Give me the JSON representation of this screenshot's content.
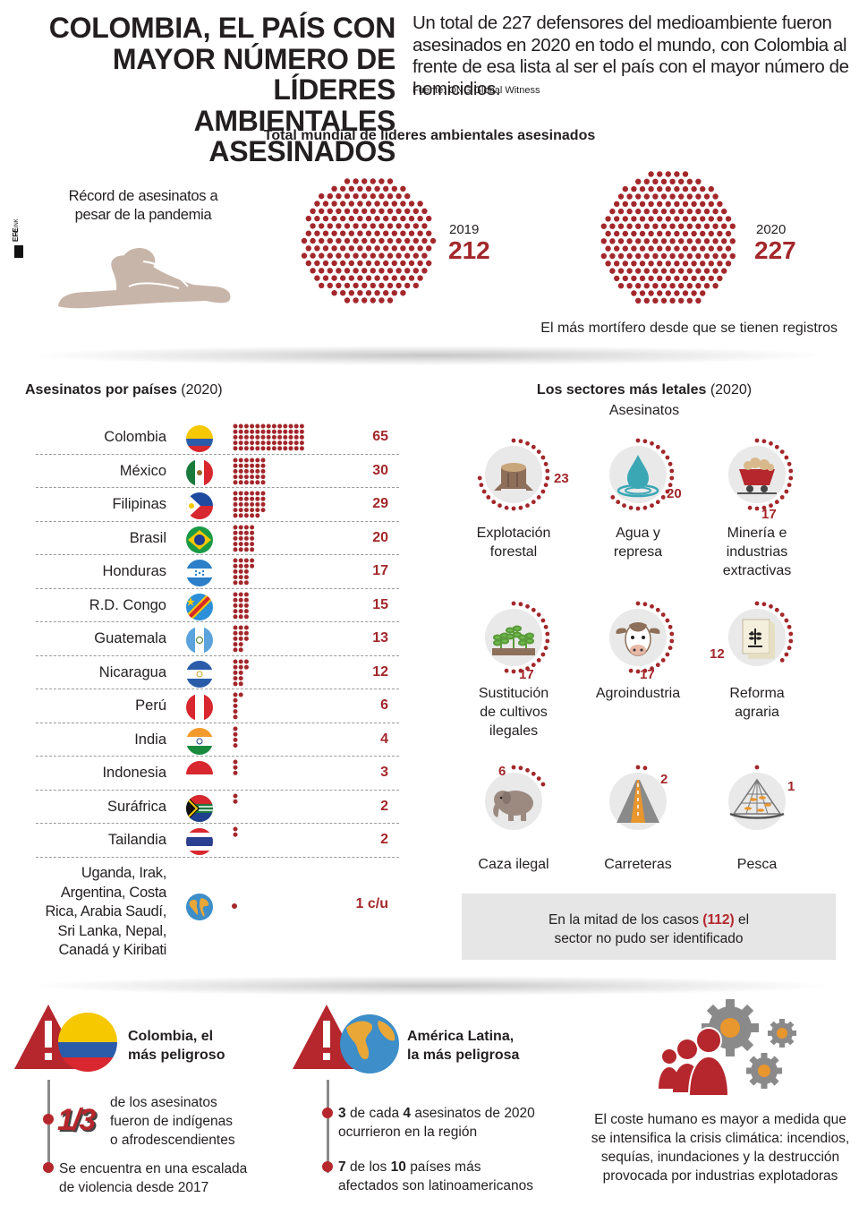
{
  "header": {
    "title_lines": [
      "COLOMBIA, EL PAÍS CON",
      "MAYOR NÚMERO DE LÍDERES",
      "AMBIENTALES ASESINADOS"
    ],
    "intro": "Un total de 227 defensores del medioambiente fueron asesinados en 2020 en todo el mundo, con Colombia al frente de esa lista al ser el país con el mayor número de homicidios.",
    "source": "Fuente: ONG Global Witness",
    "agency_logo": "EFE|NEWS"
  },
  "totals": {
    "title": "Total mundial de líderes ambientales asesinados",
    "record_text_line1": "Récord de asesinatos a",
    "record_text_line2": "pesar de la pandemia",
    "y2019_label": "2019",
    "y2019_value": "212",
    "y2020_label": "2020",
    "y2020_value": "227",
    "note": "El más mortífero desde que se tienen registros"
  },
  "countries": {
    "title_bold": "Asesinatos por países",
    "title_rest": "(2020)",
    "rows": [
      {
        "name": "Colombia",
        "value": "65",
        "count": 65,
        "flag": "colombia"
      },
      {
        "name": "México",
        "value": "30",
        "count": 30,
        "flag": "mexico"
      },
      {
        "name": "Filipinas",
        "value": "29",
        "count": 29,
        "flag": "philippines"
      },
      {
        "name": "Brasil",
        "value": "20",
        "count": 20,
        "flag": "brazil"
      },
      {
        "name": "Honduras",
        "value": "17",
        "count": 17,
        "flag": "honduras"
      },
      {
        "name": "R.D. Congo",
        "value": "15",
        "count": 15,
        "flag": "drcongo"
      },
      {
        "name": "Guatemala",
        "value": "13",
        "count": 13,
        "flag": "guatemala"
      },
      {
        "name": "Nicaragua",
        "value": "12",
        "count": 12,
        "flag": "nicaragua"
      },
      {
        "name": "Perú",
        "value": "6",
        "count": 6,
        "flag": "peru"
      },
      {
        "name": "India",
        "value": "4",
        "count": 4,
        "flag": "india"
      },
      {
        "name": "Indonesia",
        "value": "3",
        "count": 3,
        "flag": "indonesia"
      },
      {
        "name": "Suráfrica",
        "value": "2",
        "count": 2,
        "flag": "southafrica"
      },
      {
        "name": "Tailandia",
        "value": "2",
        "count": 2,
        "flag": "thailand"
      }
    ],
    "others_lines": [
      "Uganda, Irak,",
      "Argentina, Costa",
      "Rica, Arabia Saudí,",
      "Sri Lanka, Nepal,",
      "Canadá y Kiribati"
    ],
    "others_value": "1 c/u",
    "others_icon": "globe-icon"
  },
  "sectors": {
    "title_bold": "Los sectores más letales",
    "title_rest": "(2020)",
    "subtitle": "Asesinatos",
    "items": [
      {
        "label_lines": [
          "Explotación",
          "forestal"
        ],
        "value": "23",
        "count": 23,
        "icon": "tree-stump-icon"
      },
      {
        "label_lines": [
          "Agua y",
          "represa"
        ],
        "value": "20",
        "count": 20,
        "icon": "water-drop-icon"
      },
      {
        "label_lines": [
          "Minería e",
          "industrias",
          "extractivas"
        ],
        "value": "17",
        "count": 17,
        "icon": "mine-cart-icon"
      },
      {
        "label_lines": [
          "Sustitución",
          "de cultivos",
          "ilegales"
        ],
        "value": "17",
        "count": 17,
        "icon": "seedlings-icon"
      },
      {
        "label_lines": [
          "Agroindustria"
        ],
        "value": "17",
        "count": 17,
        "icon": "cow-icon"
      },
      {
        "label_lines": [
          "Reforma",
          "agraria"
        ],
        "value": "12",
        "count": 12,
        "icon": "land-document-icon"
      },
      {
        "label_lines": [
          "Caza ilegal"
        ],
        "value": "6",
        "count": 6,
        "icon": "elephant-icon"
      },
      {
        "label_lines": [
          "Carreteras"
        ],
        "value": "2",
        "count": 2,
        "icon": "road-icon"
      },
      {
        "label_lines": [
          "Pesca"
        ],
        "value": "1",
        "count": 1,
        "icon": "fishing-net-icon"
      }
    ],
    "unknown_line1_pre": "En la mitad de los casos",
    "unknown_value": "(112)",
    "unknown_line1_post": "el",
    "unknown_line2": "sector no pudo ser identificado"
  },
  "bottom": {
    "colombia": {
      "title_lines": [
        "Colombia, el",
        "más peligroso"
      ],
      "fraction": "1/3",
      "fact1_lines": [
        "de los asesinatos",
        "fueron de indígenas",
        "o afrodescendientes"
      ],
      "fact2_lines": [
        "Se encuentra en una escalada",
        "de violencia desde 2017"
      ]
    },
    "latam": {
      "title_lines": [
        "América Latina,",
        "la más peligrosa"
      ],
      "f1_a": "3",
      "f1_b": "de cada",
      "f1_c": "4",
      "f1_d": "asesinatos de 2020",
      "f1_line2": "ocurrieron en la región",
      "f2_a": "7",
      "f2_b": "de los",
      "f2_c": "10",
      "f2_d": "países más",
      "f2_line2": "afectados son latinoamericanos"
    },
    "closing_lines": [
      "El coste humano es mayor a medida que",
      "se intensifica la crisis climática: incendios,",
      "sequías, inundaciones y la destrucción",
      "provocada por industrias explotadoras"
    ]
  },
  "colors": {
    "accent": "#a3272b",
    "dots": "#a3272b",
    "gray": "#e6e6e6"
  }
}
